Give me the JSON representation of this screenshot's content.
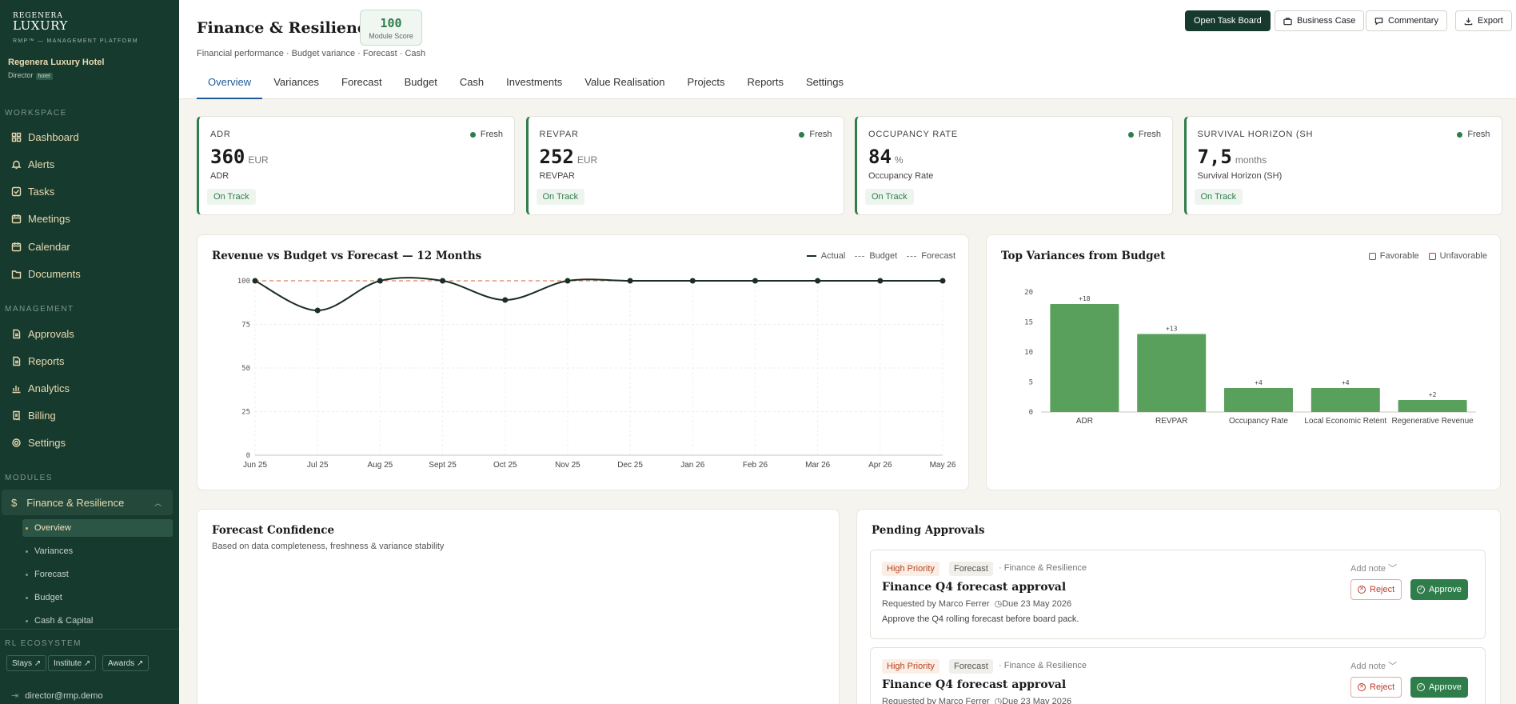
{
  "brand": {
    "line1": "REGENERA",
    "line2": "LUXURY",
    "tagline": "RMP™ — MANAGEMENT PLATFORM"
  },
  "hotel": {
    "name": "Regenera Luxury Hotel",
    "role": "Director",
    "badge": "hotel"
  },
  "sidebar": {
    "workspace_label": "WORKSPACE",
    "workspace": [
      {
        "label": "Dashboard",
        "icon": "grid-icon"
      },
      {
        "label": "Alerts",
        "icon": "bell-icon"
      },
      {
        "label": "Tasks",
        "icon": "checkbox-icon"
      },
      {
        "label": "Meetings",
        "icon": "calendar-icon"
      },
      {
        "label": "Calendar",
        "icon": "calendar-icon"
      },
      {
        "label": "Documents",
        "icon": "folder-icon"
      }
    ],
    "management_label": "MANAGEMENT",
    "management": [
      {
        "label": "Approvals",
        "icon": "document-icon"
      },
      {
        "label": "Reports",
        "icon": "document-icon"
      },
      {
        "label": "Analytics",
        "icon": "bar-chart-icon"
      },
      {
        "label": "Billing",
        "icon": "receipt-icon"
      },
      {
        "label": "Settings",
        "icon": "gear-icon"
      }
    ],
    "modules_label": "MODULES",
    "module_active": {
      "label": "Finance & Resilience",
      "icon": "dollar-icon"
    },
    "module_subitems": [
      "Overview",
      "Variances",
      "Forecast",
      "Budget",
      "Cash & Capital"
    ],
    "ecosystem_label": "RL ECOSYSTEM",
    "ecosystem": [
      "Stays",
      "Institute",
      "Awards"
    ],
    "user_email": "director@rmp.demo"
  },
  "header": {
    "title": "Finance & Resilience",
    "score_value": "100",
    "score_label": "Module Score",
    "subtitle": "Financial performance · Budget variance · Forecast · Cash",
    "buttons": {
      "task_board": "Open Task Board",
      "business_case": "Business Case",
      "commentary": "Commentary",
      "export": "Export"
    },
    "tabs": [
      "Overview",
      "Variances",
      "Forecast",
      "Budget",
      "Cash",
      "Investments",
      "Value Realisation",
      "Projects",
      "Reports",
      "Settings"
    ],
    "active_tab": "Overview"
  },
  "kpis": [
    {
      "name": "ADR",
      "fresh": "Fresh",
      "value": "360",
      "unit": "EUR",
      "desc": "ADR",
      "status": "On Track"
    },
    {
      "name": "REVPAR",
      "fresh": "Fresh",
      "value": "252",
      "unit": "EUR",
      "desc": "REVPAR",
      "status": "On Track"
    },
    {
      "name": "OCCUPANCY RATE",
      "fresh": "Fresh",
      "value": "84",
      "unit": "%",
      "desc": "Occupancy Rate",
      "status": "On Track"
    },
    {
      "name": "SURVIVAL HORIZON (SH",
      "fresh": "Fresh",
      "value": "7,5",
      "unit": "months",
      "desc": "Survival Horizon (SH)",
      "status": "On Track"
    }
  ],
  "revenue_panel": {
    "title": "Revenue vs Budget vs Forecast — 12 Months",
    "legend": {
      "actual": "Actual",
      "budget": "Budget",
      "forecast": "Forecast"
    }
  },
  "variance_panel": {
    "title": "Top Variances from Budget",
    "legend": {
      "favorable": "Favorable",
      "unfavorable": "Unfavorable"
    }
  },
  "forecast_panel": {
    "title": "Forecast Confidence",
    "subtitle": "Based on data completeness, freshness & variance stability"
  },
  "approvals_panel": {
    "title": "Pending Approvals",
    "items": [
      {
        "priority": "High Priority",
        "category": "Forecast",
        "module": "· Finance & Resilience",
        "title": "Finance Q4 forecast approval",
        "requested_by": "Requested by Marco Ferrer",
        "due": "Due 23 May 2026",
        "description": "Approve the Q4 rolling forecast before board pack.",
        "note": "Add note",
        "reject": "Reject",
        "approve": "Approve"
      },
      {
        "priority": "High Priority",
        "category": "Forecast",
        "module": "· Finance & Resilience",
        "title": "Finance Q4 forecast approval",
        "requested_by": "Requested by Marco Ferrer",
        "due": "Due 23 May 2026",
        "description": "",
        "note": "Add note",
        "reject": "Reject",
        "approve": "Approve"
      }
    ]
  },
  "chart_data": [
    {
      "type": "line",
      "title": "Revenue vs Budget vs Forecast — 12 Months",
      "categories": [
        "Jun 25",
        "Jul 25",
        "Aug 25",
        "Sept 25",
        "Oct 25",
        "Nov 25",
        "Dec 25",
        "Jan 26",
        "Feb 26",
        "Mar 26",
        "Apr 26",
        "May 26"
      ],
      "series": [
        {
          "name": "Actual",
          "values": [
            100,
            83,
            100,
            100,
            89,
            100,
            100,
            100,
            100,
            100,
            100,
            100
          ]
        },
        {
          "name": "Budget",
          "values": [
            100,
            100,
            100,
            100,
            100,
            100,
            100,
            100,
            100,
            100,
            100,
            100
          ]
        }
      ],
      "yticks": [
        0,
        25,
        50,
        75,
        100
      ],
      "ylim": [
        0,
        100
      ],
      "grid": true,
      "legend": "top-right",
      "colors": {
        "actual": "#1a2e25",
        "budget": "#d9825b"
      }
    },
    {
      "type": "bar",
      "title": "Top Variances from Budget",
      "categories": [
        "ADR",
        "REVPAR",
        "Occupancy Rate",
        "Local Economic Retent",
        "Regenerative Revenue"
      ],
      "values": [
        18,
        13,
        4,
        4,
        2
      ],
      "labels": [
        "+18",
        "+13",
        "+4",
        "+4",
        "+2"
      ],
      "yticks": [
        0,
        5,
        10,
        15,
        20
      ],
      "ylim": [
        0,
        20
      ],
      "legend": "top-right",
      "colors": {
        "bar": "#58a05c"
      }
    }
  ]
}
